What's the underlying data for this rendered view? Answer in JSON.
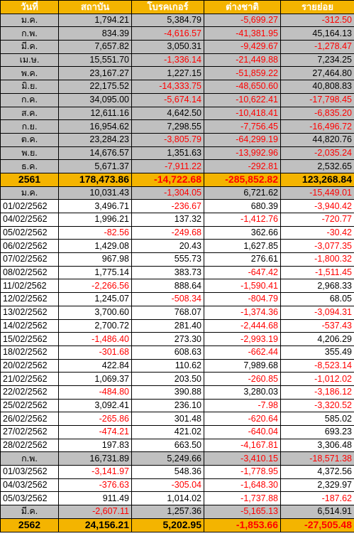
{
  "header": [
    "วันที่",
    "สถาบัน",
    "โบรคเกอร์",
    "ต่างชาติ",
    "รายย่อย"
  ],
  "rows": [
    {
      "type": "month",
      "label": "ม.ค.",
      "values": [
        "1,794.21",
        "5,384.79",
        "-5,699.27",
        "-312.50"
      ]
    },
    {
      "type": "month",
      "label": "ก.พ.",
      "values": [
        "834.39",
        "-4,616.57",
        "-41,381.95",
        "45,164.13"
      ]
    },
    {
      "type": "month",
      "label": "มี.ค.",
      "values": [
        "7,657.82",
        "3,050.31",
        "-9,429.67",
        "-1,278.47"
      ]
    },
    {
      "type": "month",
      "label": "เม.ษ.",
      "values": [
        "15,551.70",
        "-1,336.14",
        "-21,449.88",
        "7,234.25"
      ]
    },
    {
      "type": "month",
      "label": "พ.ค.",
      "values": [
        "23,167.27",
        "1,227.15",
        "-51,859.22",
        "27,464.80"
      ]
    },
    {
      "type": "month",
      "label": "มิ.ย.",
      "values": [
        "22,175.52",
        "-14,333.75",
        "-48,650.60",
        "40,808.83"
      ]
    },
    {
      "type": "month",
      "label": "ก.ค.",
      "values": [
        "34,095.00",
        "-5,674.14",
        "-10,622.41",
        "-17,798.45"
      ]
    },
    {
      "type": "month",
      "label": "ส.ค.",
      "values": [
        "12,611.16",
        "4,642.50",
        "-10,418.41",
        "-6,835.20"
      ]
    },
    {
      "type": "month",
      "label": "ก.ย.",
      "values": [
        "16,954.62",
        "7,298.55",
        "-7,756.45",
        "-16,496.72"
      ]
    },
    {
      "type": "month",
      "label": "ต.ค.",
      "values": [
        "23,284.23",
        "-3,805.79",
        "-64,299.19",
        "44,820.76"
      ]
    },
    {
      "type": "month",
      "label": "พ.ย.",
      "values": [
        "14,676.57",
        "1,351.63",
        "-13,992.96",
        "-2,035.24"
      ]
    },
    {
      "type": "month",
      "label": "ธ.ค.",
      "values": [
        "5,671.37",
        "-7,911.22",
        "-292.81",
        "2,532.65"
      ]
    },
    {
      "type": "year",
      "label": "2561",
      "values": [
        "178,473.86",
        "-14,722.68",
        "-285,852.82",
        "123,268.84"
      ]
    },
    {
      "type": "month",
      "label": "ม.ค.",
      "values": [
        "10,031.43",
        "-1,304.05",
        "6,721.62",
        "-15,449.01"
      ]
    },
    {
      "type": "daily",
      "label": "01/02/2562",
      "values": [
        "3,496.71",
        "-236.67",
        "680.39",
        "-3,940.42"
      ]
    },
    {
      "type": "daily",
      "label": "04/02/2562",
      "values": [
        "1,996.21",
        "137.32",
        "-1,412.76",
        "-720.77"
      ]
    },
    {
      "type": "daily",
      "label": "05/02/2562",
      "values": [
        "-82.56",
        "-249.68",
        "362.66",
        "-30.42"
      ]
    },
    {
      "type": "daily",
      "label": "06/02/2562",
      "values": [
        "1,429.08",
        "20.43",
        "1,627.85",
        "-3,077.35"
      ]
    },
    {
      "type": "daily",
      "label": "07/02/2562",
      "values": [
        "967.98",
        "555.73",
        "276.61",
        "-1,800.32"
      ]
    },
    {
      "type": "daily",
      "label": "08/02/2562",
      "values": [
        "1,775.14",
        "383.73",
        "-647.42",
        "-1,511.45"
      ]
    },
    {
      "type": "daily",
      "label": "11/02/2562",
      "values": [
        "-2,266.56",
        "888.64",
        "-1,590.41",
        "2,968.33"
      ]
    },
    {
      "type": "daily",
      "label": "12/02/2562",
      "values": [
        "1,245.07",
        "-508.34",
        "-804.79",
        "68.05"
      ]
    },
    {
      "type": "daily",
      "label": "13/02/2562",
      "values": [
        "3,700.60",
        "768.07",
        "-1,374.36",
        "-3,094.31"
      ]
    },
    {
      "type": "daily",
      "label": "14/02/2562",
      "values": [
        "2,700.72",
        "281.40",
        "-2,444.68",
        "-537.43"
      ]
    },
    {
      "type": "daily",
      "label": "15/02/2562",
      "values": [
        "-1,486.40",
        "273.30",
        "-2,993.19",
        "4,206.29"
      ]
    },
    {
      "type": "daily",
      "label": "18/02/2562",
      "values": [
        "-301.68",
        "608.63",
        "-662.44",
        "355.49"
      ]
    },
    {
      "type": "daily",
      "label": "20/02/2562",
      "values": [
        "422.84",
        "110.62",
        "7,989.68",
        "-8,523.14"
      ]
    },
    {
      "type": "daily",
      "label": "21/02/2562",
      "values": [
        "1,069.37",
        "203.50",
        "-260.85",
        "-1,012.02"
      ]
    },
    {
      "type": "daily",
      "label": "22/02/2562",
      "values": [
        "-484.80",
        "390.88",
        "3,280.03",
        "-3,186.12"
      ]
    },
    {
      "type": "daily",
      "label": "25/02/2562",
      "values": [
        "3,092.41",
        "236.10",
        "-7.98",
        "-3,320.52"
      ]
    },
    {
      "type": "daily",
      "label": "26/02/2562",
      "values": [
        "-265.86",
        "301.48",
        "-620.64",
        "585.02"
      ]
    },
    {
      "type": "daily",
      "label": "27/02/2562",
      "values": [
        "-474.21",
        "421.02",
        "-640.04",
        "693.23"
      ]
    },
    {
      "type": "daily",
      "label": "28/02/2562",
      "values": [
        "197.83",
        "663.50",
        "-4,167.81",
        "3,306.48"
      ]
    },
    {
      "type": "month",
      "label": "ก.พ.",
      "values": [
        "16,731.89",
        "5,249.66",
        "-3,410.15",
        "-18,571.38"
      ]
    },
    {
      "type": "daily",
      "label": "01/03/2562",
      "values": [
        "-3,141.97",
        "548.36",
        "-1,778.95",
        "4,372.56"
      ]
    },
    {
      "type": "daily",
      "label": "04/03/2562",
      "values": [
        "-376.63",
        "-305.04",
        "-1,648.30",
        "2,329.97"
      ]
    },
    {
      "type": "daily",
      "label": "05/03/2562",
      "values": [
        "911.49",
        "1,014.02",
        "-1,737.88",
        "-187.62"
      ]
    },
    {
      "type": "month",
      "label": "มี.ค.",
      "values": [
        "-2,607.11",
        "1,257.36",
        "-5,165.13",
        "6,514.91"
      ]
    },
    {
      "type": "year",
      "label": "2562",
      "values": [
        "24,156.21",
        "5,202.95",
        "-1,853.66",
        "-27,505.48"
      ]
    }
  ],
  "colors": {
    "header_bg": "#f4b400",
    "year_bg": "#f4b400",
    "month_bg": "#c0c0c0",
    "negative": "#ff0000"
  }
}
